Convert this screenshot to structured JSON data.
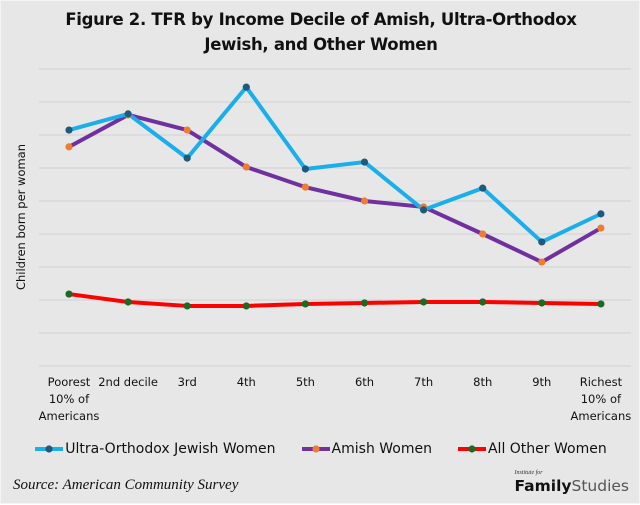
{
  "chart_data": {
    "type": "line",
    "title_lines": [
      "Figure 2. TFR by Income Decile of Amish, Ultra-Orthodox",
      "Jewish, and Other Women"
    ],
    "xlabel": "",
    "ylabel": "Children born per woman",
    "categories": [
      [
        "Poorest",
        "10% of",
        "Americans"
      ],
      [
        "2nd decile"
      ],
      [
        "3rd"
      ],
      [
        "4th"
      ],
      [
        "5th"
      ],
      [
        "6th"
      ],
      [
        "7th"
      ],
      [
        "8th"
      ],
      [
        "9th"
      ],
      [
        "Richest",
        "10% of",
        "Americans"
      ]
    ],
    "ylim": [
      0,
      9
    ],
    "y_tick_step": 1,
    "y_tick_labels_shown": false,
    "grid": true,
    "legend_position": "bottom",
    "series": [
      {
        "name": "Ultra-Orthodox Jewish Women",
        "line_color": "#1aaeea",
        "marker_color": "#1d5a7e",
        "values": [
          7.15,
          7.64,
          6.3,
          8.45,
          5.97,
          6.18,
          4.73,
          5.39,
          3.76,
          4.61
        ]
      },
      {
        "name": "Amish Women",
        "line_color": "#7030a0",
        "marker_color": "#ed7d31",
        "values": [
          6.64,
          7.61,
          7.15,
          6.03,
          5.42,
          5.0,
          4.82,
          4.0,
          3.15,
          4.18
        ]
      },
      {
        "name": "All Other Women",
        "line_color": "#ff0000",
        "marker_color": "#1b6a24",
        "values": [
          2.18,
          1.94,
          1.82,
          1.82,
          1.88,
          1.91,
          1.94,
          1.94,
          1.91,
          1.88
        ]
      }
    ]
  },
  "footer": {
    "source": "Source: American Community Survey",
    "logo_small": "Institute for",
    "logo_bold": "Family",
    "logo_light": "Studies"
  }
}
